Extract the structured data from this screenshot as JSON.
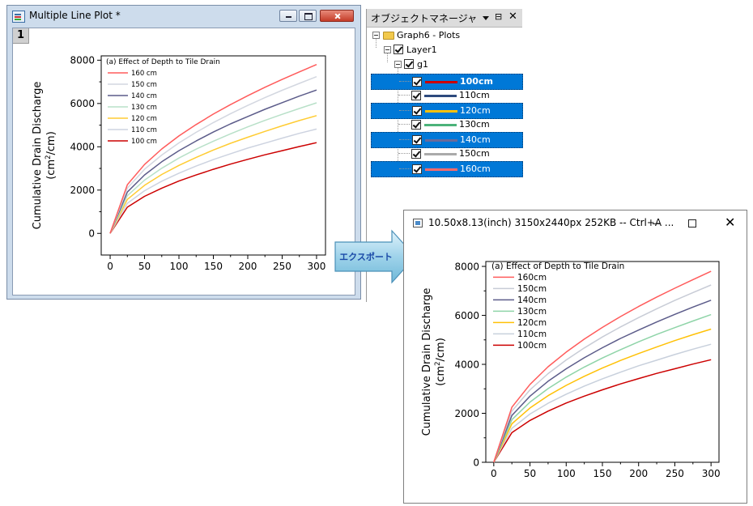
{
  "graph_window": {
    "title": "Multiple Line Plot  *",
    "layer_badge": "1"
  },
  "object_manager": {
    "title": "オブジェクトマネージャ",
    "pin_glyph": "⊟",
    "close_glyph": "✕",
    "tree": {
      "graph": "Graph6 - Plots",
      "layer": "Layer1",
      "group": "g1",
      "plots": [
        {
          "label": "100cm",
          "color": "#cc0000",
          "selected": true,
          "bold": true
        },
        {
          "label": "110cm",
          "color": "#2e4a7d",
          "selected": false,
          "bold": false
        },
        {
          "label": "120cm",
          "color": "#ffc107",
          "selected": true,
          "bold": false
        },
        {
          "label": "130cm",
          "color": "#4cb37a",
          "selected": false,
          "bold": false
        },
        {
          "label": "140cm",
          "color": "#6a6a9a",
          "selected": true,
          "bold": false
        },
        {
          "label": "150cm",
          "color": "#aaaaaa",
          "selected": false,
          "bold": false
        },
        {
          "label": "160cm",
          "color": "#ff6b6b",
          "selected": true,
          "bold": false
        }
      ],
      "selection_color": "#0078d7"
    }
  },
  "export_arrow": {
    "label": "エクスポート"
  },
  "preview_window": {
    "title": "10.50x8.13(inch) 3150x2440px  252KB -- Ctrl+A ...",
    "close_glyph": "✕"
  },
  "chart_data": [
    {
      "type": "line",
      "title": "",
      "legend_title": "(a) Effect of Depth to Tile Drain",
      "legend_placement": "top-left",
      "ylabel_line1": "Cumulative Drain Discharge",
      "ylabel_line2_prefix": "(cm",
      "ylabel_superscript": "2",
      "ylabel_line2_suffix": "/cm)",
      "xlabel": "",
      "xlim": [
        0,
        300
      ],
      "ylim": [
        0,
        8000
      ],
      "xticks": [
        "0",
        "50",
        "100",
        "150",
        "200",
        "250",
        "300"
      ],
      "yticks": [
        "0",
        "2000",
        "4000",
        "6000",
        "8000"
      ],
      "grid": false,
      "x": [
        0,
        25,
        50,
        75,
        100,
        125,
        150,
        175,
        200,
        225,
        250,
        275,
        300
      ],
      "series": [
        {
          "name": "160 cm",
          "color": "#ff5b5b",
          "values": [
            0,
            2250,
            3180,
            3900,
            4500,
            5030,
            5510,
            5950,
            6360,
            6750,
            7110,
            7460,
            7800
          ]
        },
        {
          "name": "150 cm",
          "color": "#d3d7e0",
          "values": [
            0,
            2090,
            2960,
            3620,
            4180,
            4670,
            5120,
            5530,
            5910,
            6270,
            6610,
            6930,
            7240
          ]
        },
        {
          "name": "140 cm",
          "color": "#5c5c8a",
          "values": [
            0,
            1910,
            2700,
            3310,
            3820,
            4270,
            4680,
            5060,
            5400,
            5730,
            6040,
            6340,
            6620
          ]
        },
        {
          "name": "130 cm",
          "color": "#b8e0c8",
          "values": [
            0,
            1740,
            2460,
            3010,
            3480,
            3890,
            4260,
            4600,
            4920,
            5220,
            5500,
            5770,
            6030
          ]
        },
        {
          "name": "120 cm",
          "color": "#ffcc33",
          "values": [
            0,
            1570,
            2220,
            2720,
            3140,
            3510,
            3850,
            4160,
            4440,
            4710,
            4970,
            5210,
            5440
          ]
        },
        {
          "name": "110 cm",
          "color": "#cdd3e0",
          "values": [
            0,
            1390,
            1970,
            2410,
            2780,
            3110,
            3410,
            3680,
            3940,
            4170,
            4400,
            4620,
            4820
          ]
        },
        {
          "name": "100 cm",
          "color": "#cc0000",
          "values": [
            0,
            1210,
            1710,
            2090,
            2420,
            2700,
            2960,
            3200,
            3420,
            3630,
            3820,
            4010,
            4190
          ]
        }
      ]
    },
    {
      "type": "line",
      "title": "",
      "legend_title": "(a) Effect of Depth to Tile Drain",
      "legend_placement": "top-left",
      "ylabel_line1": "Cumulative Drain Discharge",
      "ylabel_line2_prefix": "(cm",
      "ylabel_superscript": "2",
      "ylabel_line2_suffix": "/cm)",
      "xlabel": "",
      "xlim": [
        0,
        300
      ],
      "ylim": [
        0,
        8000
      ],
      "xticks": [
        "0",
        "50",
        "100",
        "150",
        "200",
        "250",
        "300"
      ],
      "yticks": [
        "0",
        "2000",
        "4000",
        "6000",
        "8000"
      ],
      "grid": false,
      "x": [
        0,
        25,
        50,
        75,
        100,
        125,
        150,
        175,
        200,
        225,
        250,
        275,
        300
      ],
      "series": [
        {
          "name": "160cm",
          "color": "#ff5b5b",
          "values": [
            0,
            2250,
            3180,
            3900,
            4500,
            5030,
            5510,
            5950,
            6360,
            6750,
            7110,
            7460,
            7800
          ]
        },
        {
          "name": "150cm",
          "color": "#c8ccd6",
          "values": [
            0,
            2090,
            2960,
            3620,
            4180,
            4670,
            5120,
            5530,
            5910,
            6270,
            6610,
            6930,
            7240
          ]
        },
        {
          "name": "140cm",
          "color": "#5c5c8a",
          "values": [
            0,
            1910,
            2700,
            3310,
            3820,
            4270,
            4680,
            5060,
            5400,
            5730,
            6040,
            6340,
            6620
          ]
        },
        {
          "name": "130cm",
          "color": "#8fd4a8",
          "values": [
            0,
            1740,
            2460,
            3010,
            3480,
            3890,
            4260,
            4600,
            4920,
            5220,
            5500,
            5770,
            6030
          ]
        },
        {
          "name": "120cm",
          "color": "#ffc107",
          "values": [
            0,
            1570,
            2220,
            2720,
            3140,
            3510,
            3850,
            4160,
            4440,
            4710,
            4970,
            5210,
            5440
          ]
        },
        {
          "name": "110cm",
          "color": "#c8d0dc",
          "values": [
            0,
            1390,
            1970,
            2410,
            2780,
            3110,
            3410,
            3680,
            3940,
            4170,
            4400,
            4620,
            4820
          ]
        },
        {
          "name": "100cm",
          "color": "#cc0000",
          "values": [
            0,
            1210,
            1710,
            2090,
            2420,
            2700,
            2960,
            3200,
            3420,
            3630,
            3820,
            4010,
            4190
          ]
        }
      ]
    }
  ]
}
